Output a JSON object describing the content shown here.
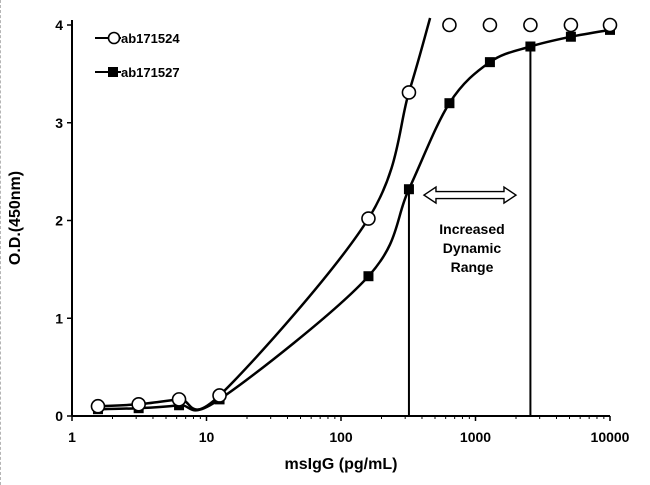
{
  "chart_data": {
    "type": "line",
    "title": "",
    "xlabel": "msIgG (pg/mL)",
    "ylabel": "O.D.(450nm)",
    "xscale": "log",
    "xlim": [
      1,
      10000
    ],
    "ylim": [
      0,
      4
    ],
    "xticks": [
      "1",
      "10",
      "100",
      "1000",
      "10000"
    ],
    "yticks": [
      "0",
      "1",
      "2",
      "3",
      "4"
    ],
    "legend_position": "top-left",
    "series": [
      {
        "name": "ab171524",
        "marker": "open-circle",
        "x": [
          1.56,
          3.13,
          6.25,
          12.5,
          160,
          320,
          640,
          1280,
          2560,
          5120,
          10000
        ],
        "y": [
          0.1,
          0.12,
          0.17,
          0.21,
          2.02,
          3.31,
          4.0,
          4.0,
          4.0,
          4.0,
          4.0
        ]
      },
      {
        "name": "ab171527",
        "marker": "filled-square",
        "x": [
          1.56,
          3.13,
          6.25,
          12.5,
          160,
          320,
          640,
          1280,
          2560,
          5120,
          10000
        ],
        "y": [
          0.07,
          0.08,
          0.11,
          0.17,
          1.43,
          2.32,
          3.2,
          3.62,
          3.78,
          3.88,
          3.95
        ]
      }
    ],
    "reference_lines_x": [
      320,
      2560
    ],
    "annotation": {
      "lines": [
        "Increased",
        "Dynamic",
        "Range"
      ],
      "arrow_from_x": 400,
      "arrow_to_x": 2000,
      "arrow_y": 2.26
    }
  }
}
